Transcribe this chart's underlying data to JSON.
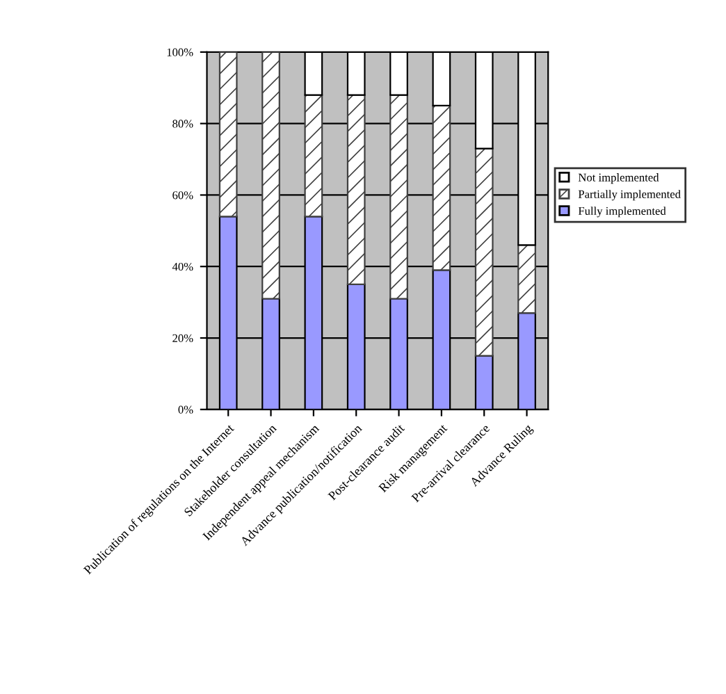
{
  "chart_data": {
    "type": "bar",
    "stacked": true,
    "categories": [
      "Publication of regulations on the Internet",
      "Stakeholder consultation",
      "Independent appeal mechanism",
      "Advance publication/notification",
      "Post-clearance audit",
      "Risk management",
      "Pre-arrival clearance",
      "Advance Ruling"
    ],
    "series": [
      {
        "name": "Fully implemented",
        "color": "#9999ff",
        "values": [
          54,
          31,
          54,
          35,
          31,
          39,
          15,
          27
        ]
      },
      {
        "name": "Partially implemented",
        "color": "#404040",
        "values": [
          46,
          69,
          34,
          53,
          57,
          46,
          58,
          19
        ]
      },
      {
        "name": "Not implemented",
        "color": "#ffffff",
        "values": [
          0,
          0,
          12,
          12,
          12,
          15,
          27,
          54
        ]
      }
    ],
    "ylim": [
      0,
      100
    ],
    "yticks": [
      {
        "value": 0,
        "label": "0%"
      },
      {
        "value": 20,
        "label": "20%"
      },
      {
        "value": 40,
        "label": "40%"
      },
      {
        "value": 60,
        "label": "60%"
      },
      {
        "value": 80,
        "label": "80%"
      },
      {
        "value": 100,
        "label": "100%"
      }
    ],
    "grid": "y",
    "legend": "right"
  }
}
